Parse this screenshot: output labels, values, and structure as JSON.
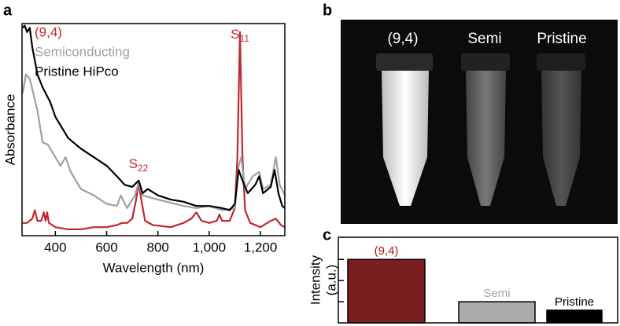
{
  "panels": [
    "a",
    "b",
    "c"
  ],
  "chart_data": [
    {
      "type": "line",
      "xlabel": "Wavelength (nm)",
      "ylabel": "Absorbance",
      "xlim": [
        270,
        1295
      ],
      "ylim": [
        0,
        1
      ],
      "xticks": [
        400,
        600,
        800,
        {
          "value": 1000,
          "label": "1,000"
        },
        {
          "value": 1200,
          "label": "1,200"
        }
      ],
      "annotations": [
        {
          "text": "S",
          "sub": "22"
        },
        {
          "text": "S",
          "sub": "11"
        }
      ],
      "series": [
        {
          "name": "(9,4)",
          "color": "#c0282d",
          "x": [
            272,
            290,
            310,
            320,
            330,
            345,
            355,
            362,
            368,
            375,
            400,
            450,
            500,
            550,
            600,
            640,
            660,
            680,
            700,
            715,
            725,
            735,
            750,
            780,
            850,
            900,
            930,
            950,
            970,
            1000,
            1030,
            1040,
            1050,
            1080,
            1100,
            1110,
            1120,
            1130,
            1140,
            1160,
            1200,
            1240,
            1260,
            1280,
            1295
          ],
          "values": [
            0.06,
            0.06,
            0.08,
            0.12,
            0.07,
            0.07,
            0.11,
            0.07,
            0.11,
            0.06,
            0.04,
            0.03,
            0.03,
            0.04,
            0.04,
            0.05,
            0.06,
            0.06,
            0.08,
            0.17,
            0.25,
            0.17,
            0.07,
            0.05,
            0.04,
            0.06,
            0.08,
            0.11,
            0.07,
            0.06,
            0.07,
            0.1,
            0.07,
            0.07,
            0.13,
            0.37,
            0.96,
            0.37,
            0.12,
            0.06,
            0.04,
            0.07,
            0.08,
            0.05,
            0.04
          ]
        },
        {
          "name": "Semiconducting",
          "color": "#a0a0a0",
          "x": [
            272,
            285,
            300,
            330,
            350,
            370,
            400,
            420,
            440,
            460,
            500,
            550,
            600,
            640,
            655,
            680,
            710,
            725,
            740,
            800,
            900,
            950,
            1000,
            1050,
            1100,
            1115,
            1125,
            1140,
            1170,
            1195,
            1210,
            1240,
            1260,
            1275,
            1295
          ],
          "values": [
            0.67,
            0.76,
            0.74,
            0.59,
            0.44,
            0.43,
            0.37,
            0.33,
            0.37,
            0.3,
            0.22,
            0.19,
            0.15,
            0.14,
            0.19,
            0.13,
            0.19,
            0.25,
            0.19,
            0.17,
            0.14,
            0.13,
            0.14,
            0.12,
            0.13,
            0.33,
            0.37,
            0.22,
            0.28,
            0.3,
            0.22,
            0.24,
            0.37,
            0.24,
            0.19
          ]
        },
        {
          "name": "Pristine HiPco",
          "color": "#000000",
          "x": [
            272,
            280,
            290,
            300,
            310,
            330,
            350,
            380,
            400,
            450,
            500,
            550,
            600,
            640,
            670,
            700,
            725,
            740,
            760,
            800,
            850,
            900,
            950,
            1000,
            1050,
            1080,
            1100,
            1115,
            1130,
            1150,
            1180,
            1195,
            1210,
            1240,
            1255,
            1270,
            1285,
            1295
          ],
          "values": [
            0.98,
            0.99,
            0.96,
            0.98,
            0.89,
            0.76,
            0.7,
            0.63,
            0.56,
            0.46,
            0.41,
            0.37,
            0.33,
            0.28,
            0.24,
            0.23,
            0.26,
            0.2,
            0.22,
            0.19,
            0.17,
            0.16,
            0.14,
            0.14,
            0.13,
            0.12,
            0.15,
            0.31,
            0.26,
            0.2,
            0.24,
            0.28,
            0.2,
            0.23,
            0.31,
            0.2,
            0.14,
            0.13
          ]
        }
      ]
    },
    {
      "type": "bar",
      "ylabel": [
        "Intensity",
        "(a.u.)"
      ],
      "categories": [
        "(9,4)",
        "Semi",
        "Pristine"
      ],
      "values": [
        3.0,
        1.0,
        0.6
      ],
      "colors": [
        "#7a1f1f",
        "#aaaaaa",
        "#000000"
      ],
      "label_colors": [
        "#9b1c20",
        "#a0a0a0",
        "#000000"
      ],
      "ylim": [
        0,
        4.05
      ],
      "yticks": [
        1,
        2,
        3
      ]
    }
  ],
  "photo": {
    "labels": [
      "(9,4)",
      "Semi",
      "Pristine"
    ]
  }
}
